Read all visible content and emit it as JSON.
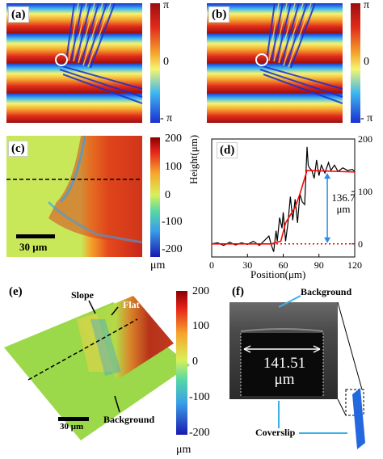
{
  "panels": {
    "a": {
      "label": "(a)",
      "cbar_ticks": [
        "π",
        "0",
        "- π"
      ]
    },
    "b": {
      "label": "(b)",
      "cbar_ticks": [
        "π",
        "0",
        "- π"
      ]
    },
    "c": {
      "label": "(c)",
      "cbar_ticks": [
        "200",
        "100",
        "0",
        "-100",
        "-200"
      ],
      "cbar_unit": "μm",
      "scalebar": "30 μm"
    },
    "e": {
      "label": "(e)",
      "cbar_ticks": [
        "200",
        "100",
        "0",
        "-100",
        "-200"
      ],
      "cbar_unit": "μm",
      "scalebar": "30 μm",
      "annotations": {
        "slope": "Slope",
        "flat": "Flat",
        "background": "Background"
      }
    },
    "f": {
      "label": "(f)",
      "background": "Background",
      "width_value": "141.51",
      "width_unit": "μm",
      "coverslip": "Coverslip"
    }
  },
  "chart_data": {
    "type": "line",
    "label": "(d)",
    "xlabel": "Position(μm)",
    "ylabel": "Height(μm)",
    "xlim": [
      0,
      120
    ],
    "ylim": [
      -25,
      200
    ],
    "xticks": [
      "0",
      "30",
      "60",
      "90",
      "120"
    ],
    "yticks": [
      "0",
      "100",
      "200"
    ],
    "annotation": {
      "value": "136.7",
      "unit": "μm",
      "x": 97,
      "y_from": 0,
      "y_to": 136.7
    },
    "zero_line": 0,
    "series": [
      {
        "color": "#000000",
        "x": [
          0,
          5,
          10,
          15,
          20,
          25,
          30,
          35,
          40,
          45,
          48,
          50,
          52,
          54,
          55,
          57,
          59,
          60,
          62,
          64,
          66,
          68,
          70,
          72,
          74,
          76,
          78,
          79,
          80,
          81,
          82,
          84,
          86,
          88,
          90,
          92,
          95,
          98,
          100,
          103,
          106,
          110,
          114,
          118,
          120
        ],
        "y": [
          0,
          2,
          -3,
          3,
          -2,
          2,
          -1,
          5,
          -3,
          8,
          15,
          -2,
          -15,
          25,
          5,
          50,
          30,
          60,
          5,
          40,
          90,
          45,
          85,
          40,
          95,
          80,
          75,
          130,
          185,
          150,
          145,
          140,
          125,
          160,
          130,
          150,
          135,
          155,
          140,
          150,
          138,
          145,
          140,
          142,
          138
        ]
      },
      {
        "color": "#ff0000",
        "x": [
          0,
          45,
          50,
          58,
          62,
          70,
          74,
          80,
          120
        ],
        "y": [
          0,
          0,
          0,
          5,
          40,
          70,
          95,
          140,
          137
        ]
      }
    ]
  },
  "colors": {
    "red_dotted": "#d80000",
    "arrow": "#2a8ce8",
    "cyan_arrow": "#3ab0e8",
    "coverslip": "#2468e0"
  }
}
